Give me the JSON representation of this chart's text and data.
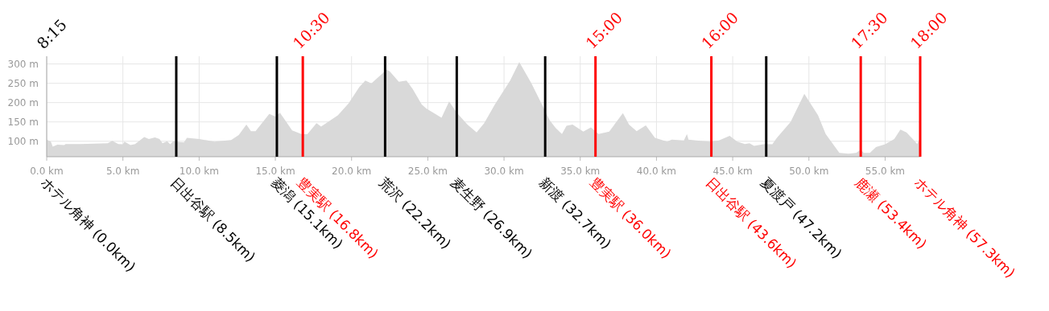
{
  "chart_data": {
    "type": "area",
    "color": "#d9d9d9",
    "x": [
      0,
      0.27,
      0.4,
      0.7,
      1.15,
      1.24,
      2.2,
      4.0,
      4.3,
      4.7,
      5.0,
      5.1,
      5.5,
      5.8,
      6.4,
      6.7,
      7.1,
      7.4,
      7.6,
      7.9,
      8.1,
      8.3,
      9.0,
      9.2,
      10.0,
      11.0,
      12.1,
      12.6,
      13.1,
      13.4,
      13.7,
      14.6,
      15.0,
      15.3,
      16.1,
      16.7,
      17.1,
      17.7,
      18.0,
      19.1,
      19.8,
      20.5,
      20.9,
      21.3,
      22.3,
      22.5,
      23.1,
      23.6,
      24.0,
      24.6,
      24.9,
      25.9,
      26.4,
      26.9,
      27.6,
      28.2,
      28.7,
      29.4,
      30.4,
      31.0,
      31.8,
      33.0,
      33.4,
      33.8,
      34.1,
      34.5,
      35.2,
      35.7,
      36.2,
      36.9,
      37.8,
      38.2,
      38.7,
      39.3,
      39.9,
      40.7,
      41.0,
      41.8,
      42.0,
      42.1,
      42.6,
      43.5,
      44.1,
      44.8,
      45.3,
      45.8,
      46.1,
      46.4,
      47.1,
      47.6,
      47.9,
      48.8,
      49.7,
      50.6,
      51.1,
      52.0,
      52.6,
      53.1,
      53.4,
      53.6,
      54.0,
      54.4,
      55.0,
      55.6,
      56.0,
      56.4,
      56.9,
      57.1,
      57.3
    ],
    "values": [
      104,
      99,
      86,
      91,
      90,
      93,
      93,
      95,
      101,
      93,
      92,
      99,
      90,
      93,
      111,
      106,
      110,
      106,
      95,
      100,
      92,
      100,
      97,
      109,
      106,
      99,
      103,
      116,
      143,
      126,
      126,
      171,
      164,
      174,
      128,
      119,
      118,
      147,
      138,
      167,
      198,
      240,
      257,
      250,
      285,
      281,
      254,
      257,
      236,
      195,
      185,
      161,
      203,
      174,
      143,
      123,
      147,
      195,
      257,
      305,
      250,
      154,
      134,
      119,
      140,
      143,
      125,
      136,
      119,
      125,
      173,
      143,
      126,
      141,
      109,
      99,
      104,
      102,
      119,
      104,
      102,
      99,
      102,
      114,
      99,
      93,
      95,
      88,
      93,
      92,
      109,
      150,
      223,
      167,
      119,
      70,
      68,
      70,
      78,
      70,
      70,
      85,
      92,
      106,
      130,
      123,
      102,
      93,
      109
    ],
    "xlim": [
      0,
      57.3
    ],
    "ylim": [
      60,
      320
    ],
    "xticks": [
      {
        "value": 0,
        "label": "0.0 km"
      },
      {
        "value": 5,
        "label": "5.0 km"
      },
      {
        "value": 10,
        "label": "10.0 km"
      },
      {
        "value": 15,
        "label": "15.0 km"
      },
      {
        "value": 20,
        "label": "20.0 km"
      },
      {
        "value": 25,
        "label": "25.0 km"
      },
      {
        "value": 30,
        "label": "30.0 km"
      },
      {
        "value": 35,
        "label": "35.0 km"
      },
      {
        "value": 40,
        "label": "40.0 km"
      },
      {
        "value": 45,
        "label": "45.0 km"
      },
      {
        "value": 50,
        "label": "50.0 km"
      },
      {
        "value": 55,
        "label": "55.0 km"
      }
    ],
    "yticks": [
      {
        "value": 100,
        "label": "100 m"
      },
      {
        "value": 150,
        "label": "150 m"
      },
      {
        "value": 200,
        "label": "200 m"
      },
      {
        "value": 250,
        "label": "250 m"
      },
      {
        "value": 300,
        "label": "300 m"
      }
    ],
    "grid": true,
    "ref_lines": [
      {
        "axis": "x",
        "value": 8.5,
        "label": "日出谷駅 (8.5km)",
        "color": "#000000"
      },
      {
        "axis": "x",
        "value": 15.1,
        "label": "菱潟 (15.1km)",
        "color": "#000000"
      },
      {
        "axis": "x",
        "value": 16.8,
        "label": "豊実駅 (16.8km)",
        "color": "#ff0000"
      },
      {
        "axis": "x",
        "value": 22.2,
        "label": "荒沢 (22.2km)",
        "color": "#000000"
      },
      {
        "axis": "x",
        "value": 26.9,
        "label": "麦生野 (26.9km)",
        "color": "#000000"
      },
      {
        "axis": "x",
        "value": 32.7,
        "label": "新渡 (32.7km)",
        "color": "#000000"
      },
      {
        "axis": "x",
        "value": 36.0,
        "label": "豊実駅 (36.0km)",
        "color": "#ff0000"
      },
      {
        "axis": "x",
        "value": 43.6,
        "label": "日出谷駅 (43.6km)",
        "color": "#ff0000"
      },
      {
        "axis": "x",
        "value": 47.2,
        "label": "夏渡戸 (47.2km)",
        "color": "#000000"
      },
      {
        "axis": "x",
        "value": 53.4,
        "label": "鹿瀬 (53.4km)",
        "color": "#ff0000"
      },
      {
        "axis": "x",
        "value": 57.3,
        "label": "ホテル角神 (57.3km)",
        "color": "#ff0000"
      }
    ],
    "annotations": [
      "ホテル角神 (0.0km)",
      "8:15",
      "10:30",
      "15:00",
      "16:00",
      "17:30",
      "18:00"
    ]
  }
}
